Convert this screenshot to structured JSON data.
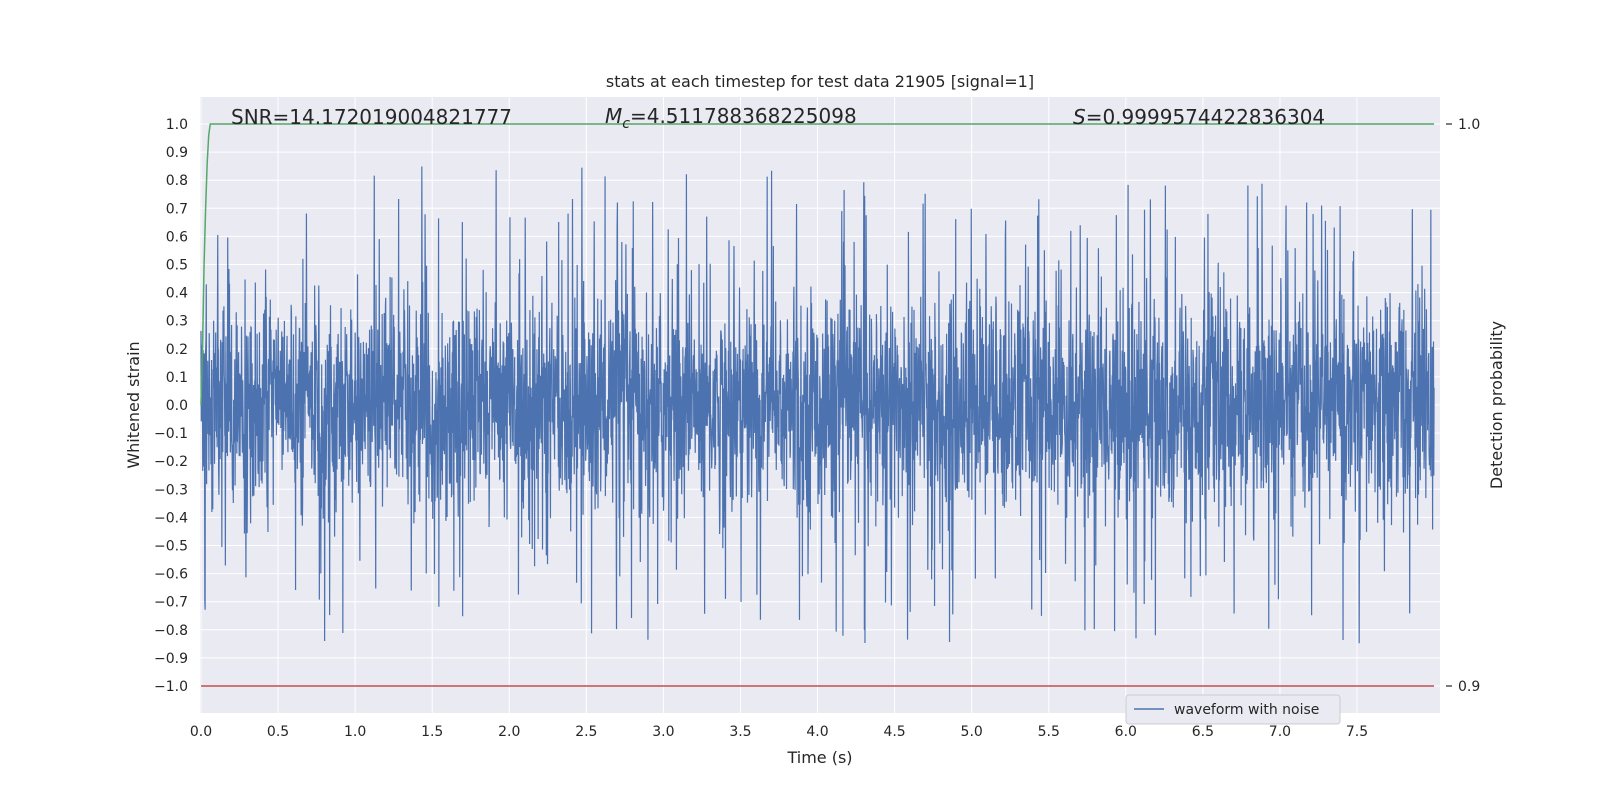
{
  "chart_data": {
    "type": "line",
    "title": "stats at each timestep for test data 21905 [signal=1]",
    "xlabel": "Time (s)",
    "ylabel": "Whitened strain",
    "y2label": "Detection probability",
    "xlim": [
      0.0,
      8.0
    ],
    "ylim": [
      -1.1,
      1.1
    ],
    "y2lim": [
      0.895,
      1.005
    ],
    "x_ticks": [
      0.0,
      0.5,
      1.0,
      1.5,
      2.0,
      2.5,
      3.0,
      3.5,
      4.0,
      4.5,
      5.0,
      5.5,
      6.0,
      6.5,
      7.0,
      7.5
    ],
    "x_tick_labels": [
      "0.0",
      "0.5",
      "1.0",
      "1.5",
      "2.0",
      "2.5",
      "3.0",
      "3.5",
      "4.0",
      "4.5",
      "5.0",
      "5.5",
      "6.0",
      "6.5",
      "7.0",
      "7.5"
    ],
    "y_ticks": [
      1.0,
      0.9,
      0.8,
      0.7,
      0.6,
      0.5,
      0.4,
      0.3,
      0.2,
      0.1,
      0.0,
      -0.1,
      -0.2,
      -0.3,
      -0.4,
      -0.5,
      -0.6,
      -0.7,
      -0.8,
      -0.9,
      -1.0
    ],
    "y_tick_labels": [
      "1.0",
      "0.9",
      "0.8",
      "0.7",
      "0.6",
      "0.5",
      "0.4",
      "0.3",
      "0.2",
      "0.1",
      "0.0",
      "−0.1",
      "−0.2",
      "−0.3",
      "−0.4",
      "−0.5",
      "−0.6",
      "−0.7",
      "−0.8",
      "−0.9",
      "−1.0"
    ],
    "y2_ticks": [
      1.0,
      0.9
    ],
    "y2_tick_labels": [
      "1.0",
      "0.9"
    ],
    "grid": true,
    "legend": "lower-right",
    "annotations": {
      "snr": "SNR=14.172019004821777",
      "mc_symbol": "M",
      "mc_sub": "c",
      "mc_value": "=4.511788368225098",
      "s_symbol": "S",
      "s_value": "=0.9999574422836304"
    },
    "series": [
      {
        "name": "waveform with noise",
        "color": "#4c72b0",
        "kind": "noise-waveform",
        "x_range": [
          0.0,
          8.0
        ],
        "typical_envelope": [
          -0.4,
          0.4
        ],
        "max": 0.99,
        "min": -1.0
      },
      {
        "color": "#55a868",
        "axis": "right",
        "x": [
          0.0,
          0.01,
          0.02,
          0.03,
          0.04,
          0.05,
          0.06,
          0.07,
          8.0
        ],
        "y": [
          0.95,
          0.96,
          0.975,
          0.985,
          0.993,
          0.998,
          1.0,
          1.0,
          1.0
        ]
      },
      {
        "color": "#c44e52",
        "axis": "right",
        "x": [
          0.0,
          8.0
        ],
        "y": [
          0.9,
          0.9
        ]
      }
    ]
  }
}
